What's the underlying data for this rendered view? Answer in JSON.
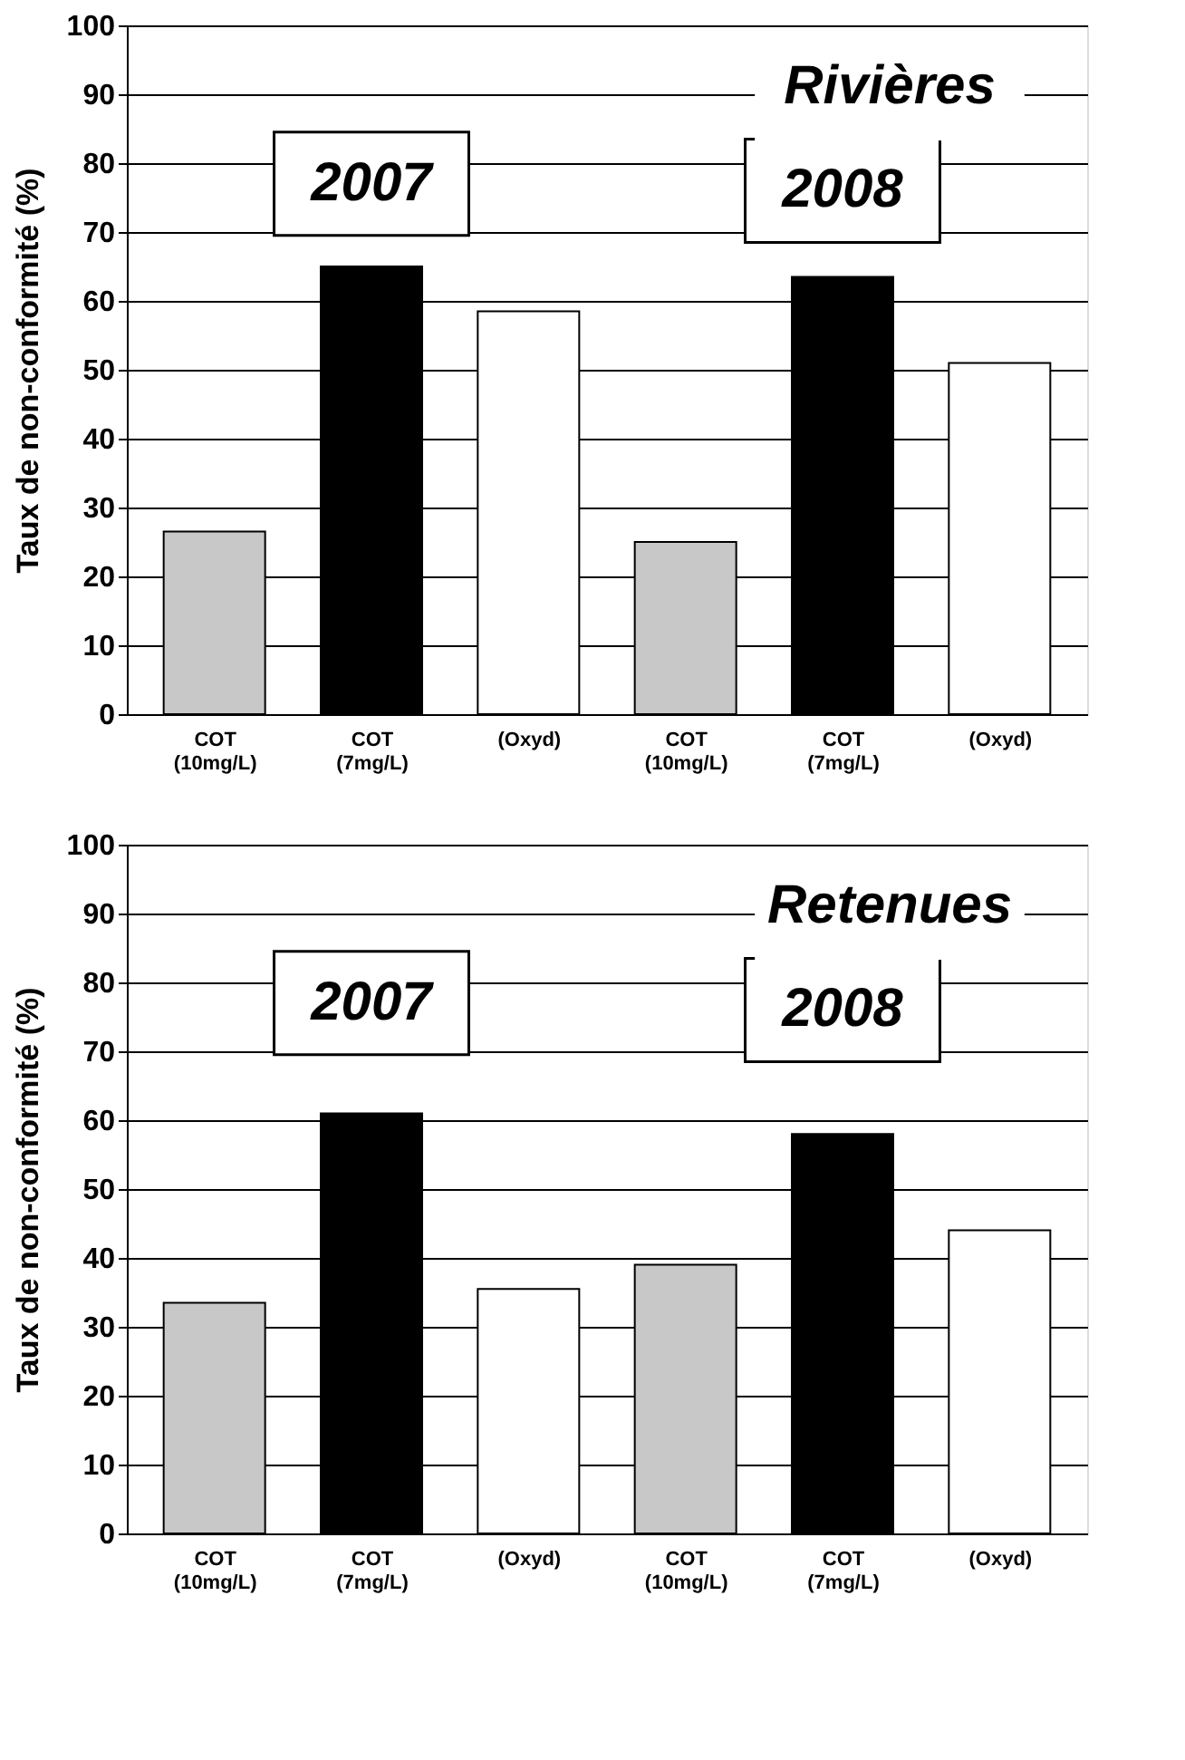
{
  "chart_data": [
    {
      "type": "bar",
      "categories": [
        "COT\n(10mg/L)",
        "COT\n(7mg/L)",
        "(Oxyd)",
        "COT\n(10mg/L)",
        "COT\n(7mg/L)",
        "(Oxyd)"
      ],
      "values": [
        26.5,
        65,
        58.5,
        25,
        63.5,
        51
      ],
      "colors": [
        "#c8c8c8",
        "#000000",
        "#ffffff",
        "#c8c8c8",
        "#000000",
        "#ffffff"
      ],
      "ylabel": "Taux de non-conformité (%)",
      "ylim": [
        0,
        100
      ],
      "yticks": [
        0,
        10,
        20,
        30,
        40,
        50,
        60,
        70,
        80,
        90,
        100
      ],
      "grid": "y",
      "annotations": [
        "2007",
        "2008",
        "Rivières"
      ]
    },
    {
      "type": "bar",
      "categories": [
        "COT\n(10mg/L)",
        "COT\n(7mg/L)",
        "(Oxyd)",
        "COT\n(10mg/L)",
        "COT\n(7mg/L)",
        "(Oxyd)"
      ],
      "values": [
        33.5,
        61,
        35.5,
        39,
        58,
        44
      ],
      "colors": [
        "#c8c8c8",
        "#000000",
        "#ffffff",
        "#c8c8c8",
        "#000000",
        "#ffffff"
      ],
      "ylabel": "Taux de non-conformité (%)",
      "ylim": [
        0,
        100
      ],
      "yticks": [
        0,
        10,
        20,
        30,
        40,
        50,
        60,
        70,
        80,
        90,
        100
      ],
      "grid": "y",
      "annotations": [
        "2007",
        "2008",
        "Retenues"
      ]
    }
  ]
}
